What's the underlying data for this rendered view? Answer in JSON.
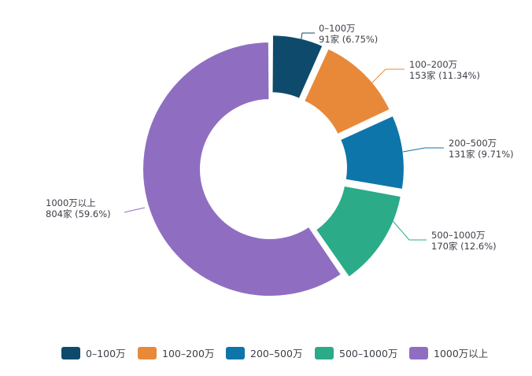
{
  "chart_data": {
    "type": "pie",
    "donut": true,
    "categories": [
      "0–100万",
      "100–200万",
      "200–500万",
      "500–1000万",
      "1000万以上"
    ],
    "series": [
      {
        "values": [
          91,
          153,
          131,
          170,
          804
        ],
        "percent_labels": [
          "6.75%",
          "11.34%",
          "9.71%",
          "12.6%",
          "59.6%"
        ],
        "count_labels": [
          "91家 (6.75%)",
          "153家 (11.34%)",
          "131家 (9.71%)",
          "170家 (12.6%)",
          "804家 (59.6%)"
        ]
      }
    ],
    "colors": [
      "#0e4a6b",
      "#e8893a",
      "#0e75aa",
      "#2bab87",
      "#8f6ec2"
    ],
    "legend": {
      "position": "bottom",
      "items": [
        "0–100万",
        "100–200万",
        "200–500万",
        "500–1000万",
        "1000万以上"
      ]
    },
    "start_angle_deg": 0,
    "direction": "clockwise"
  }
}
